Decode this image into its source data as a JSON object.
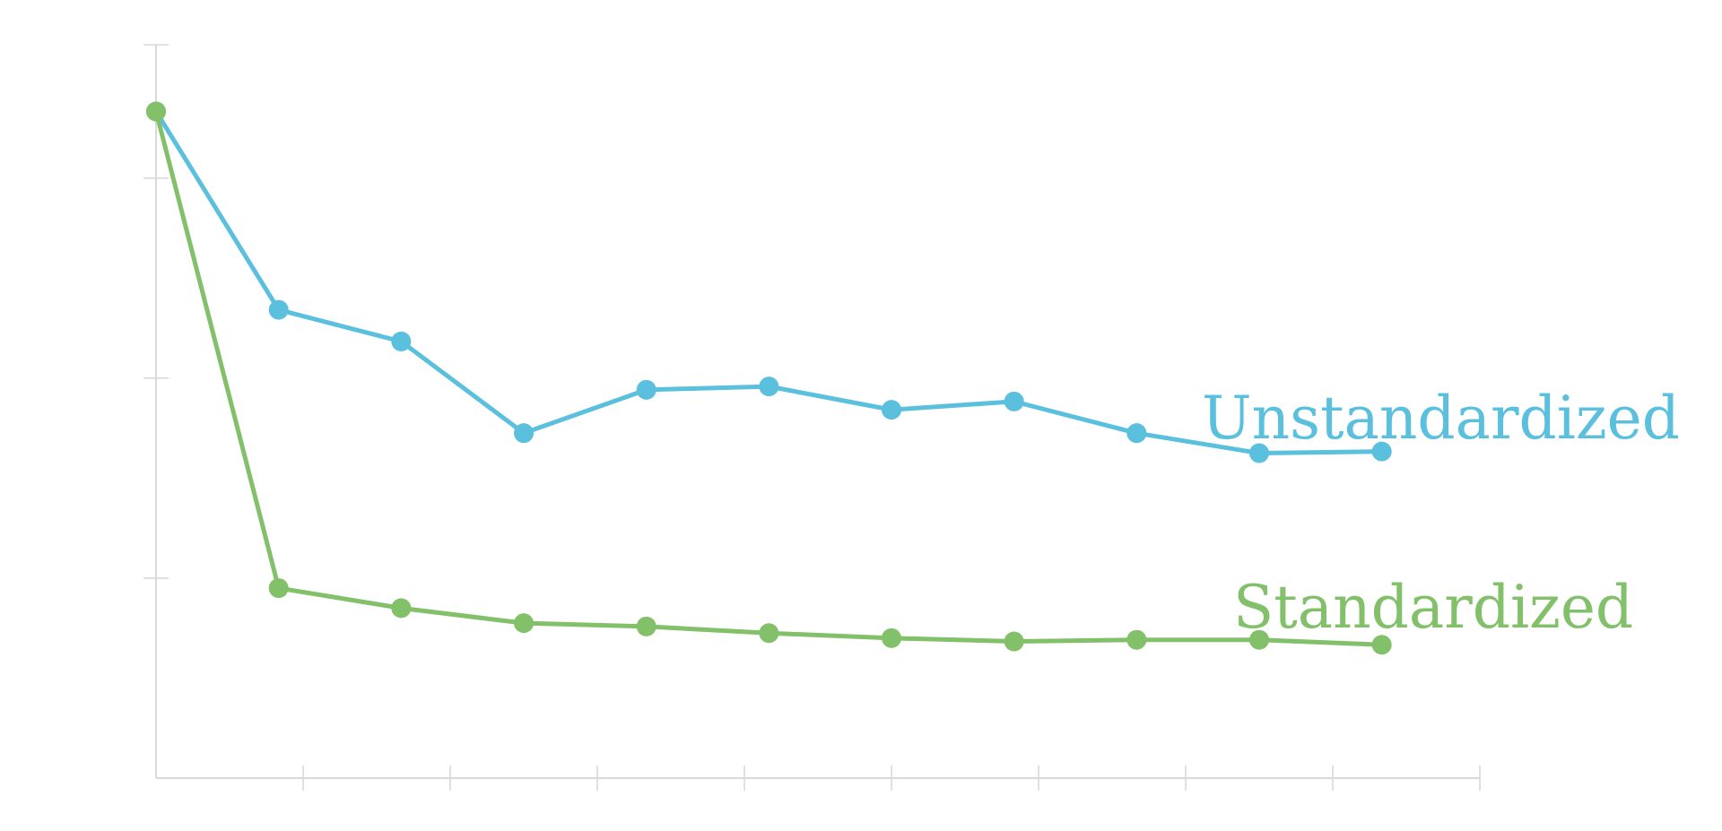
{
  "chart_data": {
    "type": "line",
    "title": "",
    "xlabel": "",
    "ylabel": "",
    "x": [
      0,
      1,
      2,
      3,
      4,
      5,
      6,
      7,
      8,
      9,
      10
    ],
    "xlim": [
      0,
      10.8
    ],
    "ylim": [
      0,
      2.2
    ],
    "x_ticks": [
      1.2,
      2.4,
      3.6,
      4.8,
      6.0,
      7.2,
      8.4,
      9.6,
      10.8
    ],
    "y_ticks": [
      0.6,
      1.2,
      1.8,
      2.2
    ],
    "grid": false,
    "legend": "none",
    "series": [
      {
        "name": "Unstandardized",
        "color": "#5bc0de",
        "values": [
          2.0,
          1.405,
          1.31,
          1.035,
          1.165,
          1.175,
          1.105,
          1.13,
          1.035,
          0.975,
          0.98
        ]
      },
      {
        "name": "Standardized",
        "color": "#82c06a",
        "values": [
          2.0,
          0.57,
          0.51,
          0.465,
          0.455,
          0.435,
          0.42,
          0.41,
          0.415,
          0.415,
          0.4
        ]
      }
    ]
  }
}
